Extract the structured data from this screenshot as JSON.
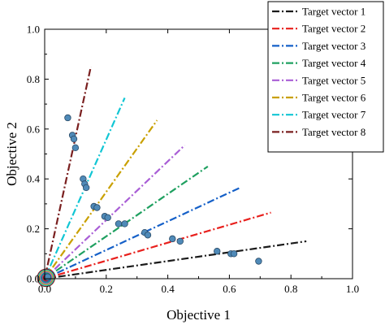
{
  "chart_data": {
    "type": "scatter",
    "title": "",
    "xlabel": "Objective 1",
    "ylabel": "Objective 2",
    "xlim": [
      0,
      1
    ],
    "ylim": [
      0,
      1
    ],
    "x_ticks": [
      "0.0",
      "0.2",
      "0.4",
      "0.6",
      "0.8",
      "1.0"
    ],
    "y_ticks": [
      "0.0",
      "0.2",
      "0.4",
      "0.6",
      "0.8",
      "1.0"
    ],
    "grid": false,
    "legend_position": "top-right",
    "reference_lines": [
      {
        "name": "Target vector 1",
        "color": "#1a1a1a",
        "end": [
          0.85,
          0.15
        ]
      },
      {
        "name": "Target vector 2",
        "color": "#e8201d",
        "end": [
          0.735,
          0.265
        ]
      },
      {
        "name": "Target vector 3",
        "color": "#1560c8",
        "end": [
          0.635,
          0.365
        ]
      },
      {
        "name": "Target vector 4",
        "color": "#1fa060",
        "end": [
          0.53,
          0.45
        ]
      },
      {
        "name": "Target vector 5",
        "color": "#a95ed6",
        "end": [
          0.455,
          0.535
        ]
      },
      {
        "name": "Target vector 6",
        "color": "#c9a000",
        "end": [
          0.365,
          0.635
        ]
      },
      {
        "name": "Target vector 7",
        "color": "#12c6d4",
        "end": [
          0.26,
          0.725
        ]
      },
      {
        "name": "Target vector 8",
        "color": "#7a1f1f",
        "end": [
          0.15,
          0.85
        ]
      }
    ],
    "points": {
      "color": "#4f8ab8",
      "x": [
        0.075,
        0.09,
        0.095,
        0.1,
        0.125,
        0.13,
        0.135,
        0.16,
        0.17,
        0.195,
        0.205,
        0.24,
        0.26,
        0.325,
        0.335,
        0.415,
        0.44,
        0.56,
        0.605,
        0.615,
        0.695
      ],
      "y": [
        0.645,
        0.575,
        0.56,
        0.525,
        0.4,
        0.38,
        0.365,
        0.29,
        0.285,
        0.25,
        0.245,
        0.22,
        0.22,
        0.185,
        0.175,
        0.16,
        0.15,
        0.11,
        0.1,
        0.1,
        0.07
      ]
    },
    "origin_cluster": {
      "x": 0.015,
      "y": 0.01
    }
  }
}
